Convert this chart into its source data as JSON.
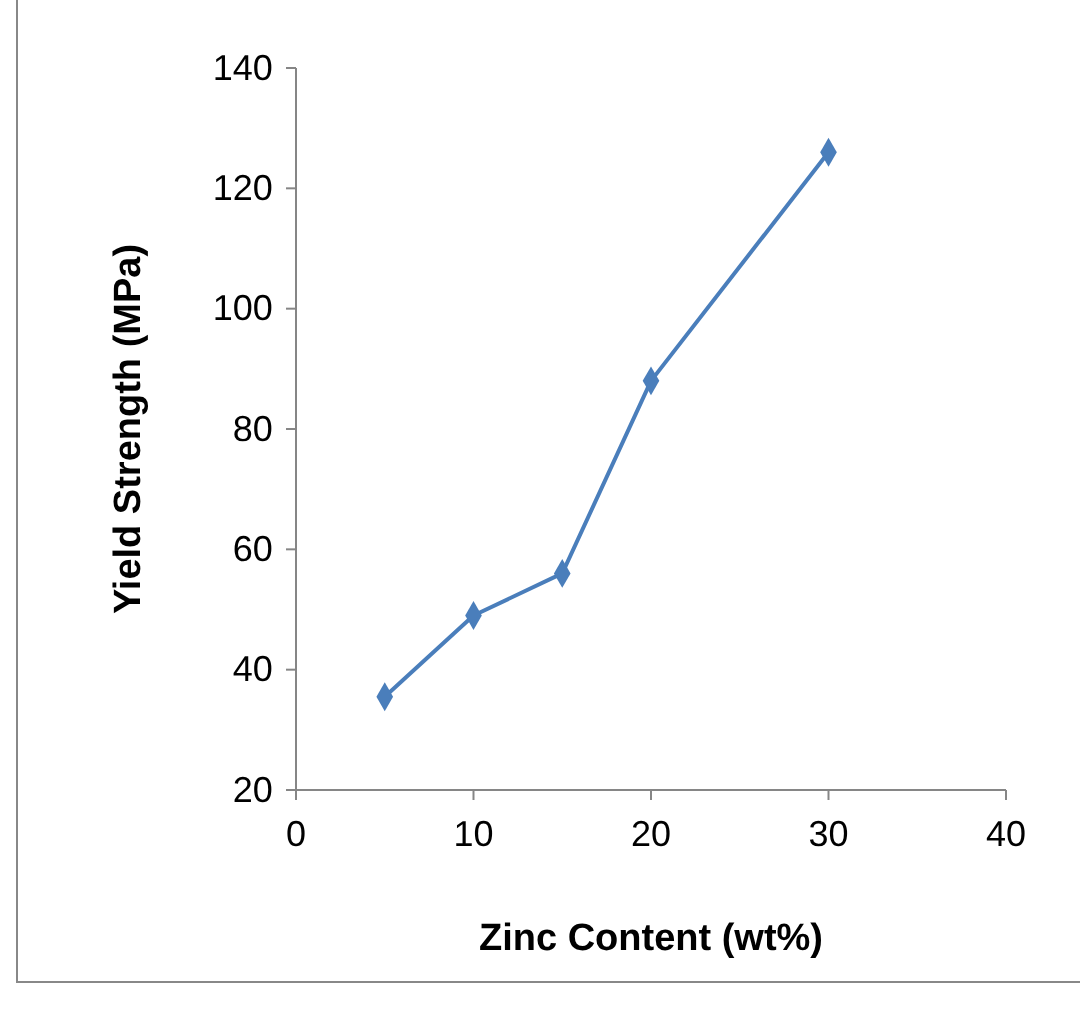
{
  "chart_data": {
    "type": "line",
    "xlabel": "Zinc Content (wt%)",
    "ylabel": "Yield Strength (MPa)",
    "x": [
      5,
      10,
      15,
      20,
      30
    ],
    "series": [
      {
        "color": "#4a7ebb",
        "values": [
          35.5,
          49,
          56,
          88,
          126
        ]
      }
    ],
    "xlim": [
      0,
      40
    ],
    "xticks": [
      0,
      10,
      20,
      30,
      40
    ],
    "ylim": [
      20,
      140
    ],
    "yticks": [
      20,
      40,
      60,
      80,
      100,
      120,
      140
    ],
    "grid": false,
    "marker": "diamond",
    "line_style": "solid"
  }
}
